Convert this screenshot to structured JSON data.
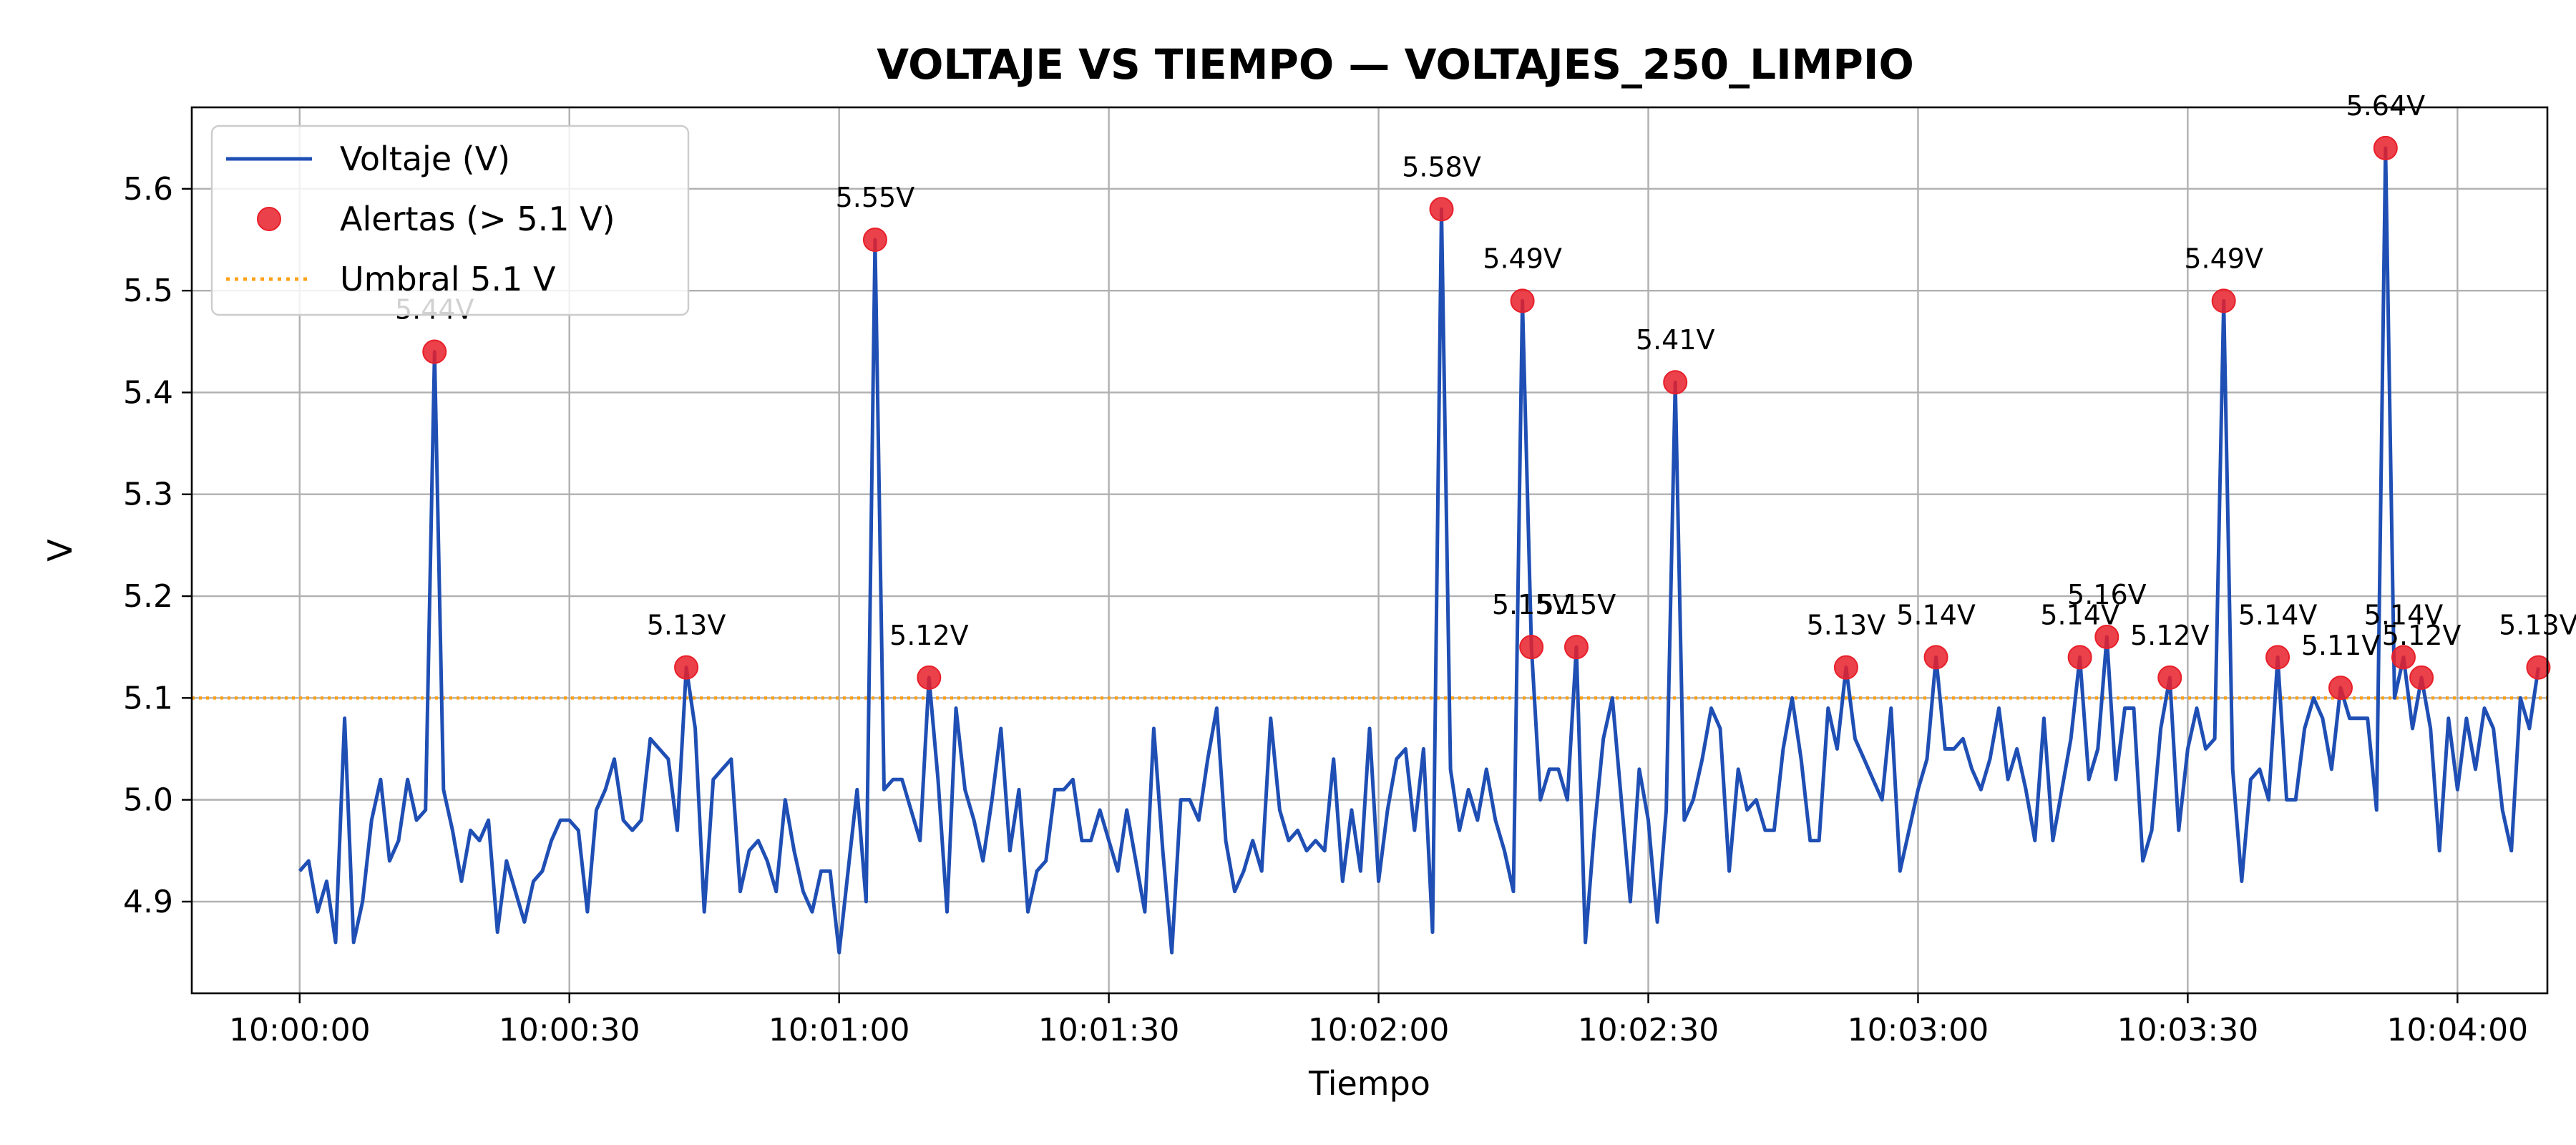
{
  "chart_data": {
    "type": "line",
    "title": "VOLTAJE VS TIEMPO — VOLTAJES_250_LIMPIO",
    "xlabel": "Tiempo",
    "ylabel": "V",
    "x_ticks": [
      "10:00:00",
      "10:00:30",
      "10:01:00",
      "10:01:30",
      "10:02:00",
      "10:02:30",
      "10:03:00",
      "10:03:30",
      "10:04:00"
    ],
    "x_range_seconds": [
      -12,
      250
    ],
    "x_sample_interval_seconds": 1,
    "ylim": [
      4.81,
      5.68
    ],
    "y_ticks": [
      4.9,
      5.0,
      5.1,
      5.2,
      5.3,
      5.4,
      5.5,
      5.6
    ],
    "grid": true,
    "legend_position": "top-left",
    "colors": {
      "line": "#1f4fb4",
      "alert": "#e8202a",
      "threshold": "#ffa21a",
      "grid": "#b0b0b0"
    },
    "series": [
      {
        "name": "Voltaje (V)",
        "kind": "line",
        "values": [
          4.93,
          4.94,
          4.89,
          4.92,
          4.86,
          5.08,
          4.86,
          4.9,
          4.98,
          5.02,
          4.94,
          4.96,
          5.02,
          4.98,
          4.99,
          5.44,
          5.01,
          4.97,
          4.92,
          4.97,
          4.96,
          4.98,
          4.87,
          4.94,
          4.91,
          4.88,
          4.92,
          4.93,
          4.96,
          4.98,
          4.98,
          4.97,
          4.89,
          4.99,
          5.01,
          5.04,
          4.98,
          4.97,
          4.98,
          5.06,
          5.05,
          5.04,
          4.97,
          5.13,
          5.07,
          4.89,
          5.02,
          5.03,
          5.04,
          4.91,
          4.95,
          4.96,
          4.94,
          4.91,
          5.0,
          4.95,
          4.91,
          4.89,
          4.93,
          4.93,
          4.85,
          4.93,
          5.01,
          4.9,
          5.55,
          5.01,
          5.02,
          5.02,
          4.99,
          4.96,
          5.12,
          5.02,
          4.89,
          5.09,
          5.01,
          4.98,
          4.94,
          5.0,
          5.07,
          4.95,
          5.01,
          4.89,
          4.93,
          4.94,
          5.01,
          5.01,
          5.02,
          4.96,
          4.96,
          4.99,
          4.96,
          4.93,
          4.99,
          4.94,
          4.89,
          5.07,
          4.95,
          4.85,
          5.0,
          5.0,
          4.98,
          5.04,
          5.09,
          4.96,
          4.91,
          4.93,
          4.96,
          4.93,
          5.08,
          4.99,
          4.96,
          4.97,
          4.95,
          4.96,
          4.95,
          5.04,
          4.92,
          4.99,
          4.93,
          5.07,
          4.92,
          4.99,
          5.04,
          5.05,
          4.97,
          5.05,
          4.87,
          5.58,
          5.03,
          4.97,
          5.01,
          4.98,
          5.03,
          4.98,
          4.95,
          4.91,
          5.49,
          5.15,
          5.0,
          5.03,
          5.03,
          5.0,
          5.15,
          4.86,
          4.97,
          5.06,
          5.1,
          5.0,
          4.9,
          5.03,
          4.98,
          4.88,
          4.99,
          5.41,
          4.98,
          5.0,
          5.04,
          5.09,
          5.07,
          4.93,
          5.03,
          4.99,
          5.0,
          4.97,
          4.97,
          5.05,
          5.1,
          5.04,
          4.96,
          4.96,
          5.09,
          5.05,
          5.13,
          5.06,
          5.04,
          5.02,
          5.0,
          5.09,
          4.93,
          4.97,
          5.01,
          5.04,
          5.14,
          5.05,
          5.05,
          5.06,
          5.03,
          5.01,
          5.04,
          5.09,
          5.02,
          5.05,
          5.01,
          4.96,
          5.08,
          4.96,
          5.01,
          5.06,
          5.14,
          5.02,
          5.05,
          5.16,
          5.02,
          5.09,
          5.09,
          4.94,
          4.97,
          5.07,
          5.12,
          4.97,
          5.05,
          5.09,
          5.05,
          5.06,
          5.49,
          5.03,
          4.92,
          5.02,
          5.03,
          5.0,
          5.14,
          5.0,
          5.0,
          5.07,
          5.1,
          5.08,
          5.03,
          5.11,
          5.08,
          5.08,
          5.08,
          4.99,
          5.64,
          5.1,
          5.14,
          5.07,
          5.12,
          5.07,
          4.95,
          5.08,
          5.01,
          5.08,
          5.03,
          5.09,
          5.07,
          4.99,
          4.95,
          5.1,
          5.07,
          5.13
        ]
      },
      {
        "name": "Alertas (> 5.1 V)",
        "kind": "scatter",
        "points": [
          {
            "t": 15,
            "v": 5.44,
            "label": "5.44V"
          },
          {
            "t": 43,
            "v": 5.13,
            "label": "5.13V"
          },
          {
            "t": 64,
            "v": 5.55,
            "label": "5.55V"
          },
          {
            "t": 70,
            "v": 5.12,
            "label": "5.12V"
          },
          {
            "t": 127,
            "v": 5.58,
            "label": "5.58V"
          },
          {
            "t": 136,
            "v": 5.49,
            "label": "5.49V"
          },
          {
            "t": 137,
            "v": 5.15,
            "label": "5.15V"
          },
          {
            "t": 142,
            "v": 5.15,
            "label": "5.15V"
          },
          {
            "t": 153,
            "v": 5.41,
            "label": "5.41V"
          },
          {
            "t": 172,
            "v": 5.13,
            "label": "5.13V"
          },
          {
            "t": 182,
            "v": 5.14,
            "label": "5.14V"
          },
          {
            "t": 198,
            "v": 5.14,
            "label": "5.14V"
          },
          {
            "t": 201,
            "v": 5.16,
            "label": "5.16V"
          },
          {
            "t": 208,
            "v": 5.12,
            "label": "5.12V"
          },
          {
            "t": 214,
            "v": 5.49,
            "label": "5.49V"
          },
          {
            "t": 220,
            "v": 5.14,
            "label": "5.14V"
          },
          {
            "t": 227,
            "v": 5.11,
            "label": "5.11V"
          },
          {
            "t": 232,
            "v": 5.64,
            "label": "5.64V"
          },
          {
            "t": 234,
            "v": 5.14,
            "label": "5.14V"
          },
          {
            "t": 236,
            "v": 5.12,
            "label": "5.12V"
          },
          {
            "t": 249,
            "v": 5.13,
            "label": "5.13V"
          }
        ]
      },
      {
        "name": "Umbral 5.1 V",
        "kind": "hline",
        "value": 5.1
      }
    ]
  }
}
